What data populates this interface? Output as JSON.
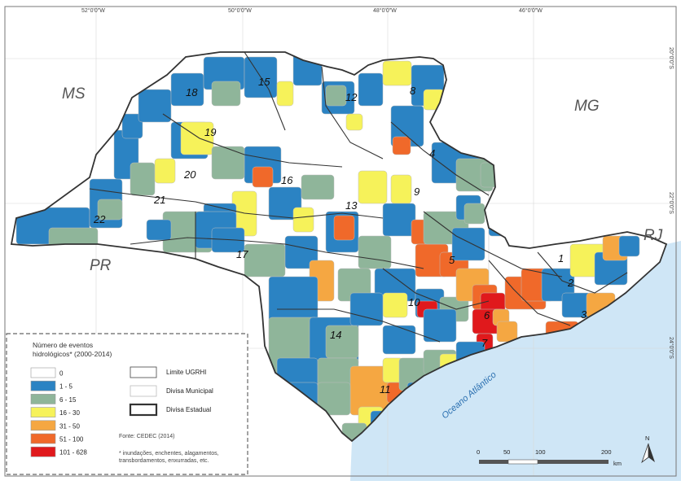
{
  "graticule": {
    "top": [
      "52°0'0\"W",
      "50°0'0\"W",
      "48°0'0\"W",
      "46°0'0\"W"
    ],
    "right": [
      "20°0'0\"S",
      "22°0'0\"S",
      "24°0'0\"S"
    ]
  },
  "states": [
    "MS",
    "MG",
    "PR",
    "RJ"
  ],
  "ugrhi_numbers": [
    "1",
    "2",
    "3",
    "4",
    "5",
    "6",
    "7",
    "8",
    "9",
    "10",
    "11",
    "12",
    "13",
    "14",
    "15",
    "16",
    "17",
    "18",
    "19",
    "20",
    "21",
    "22"
  ],
  "ocean_label": "Oceano Atlântico",
  "legend": {
    "title_line1": "Número de eventos",
    "title_line2": "hidrológicos* (2000-2014)",
    "classes": [
      {
        "label": "0",
        "color": "#ffffff"
      },
      {
        "label": "1 - 5",
        "color": "#2b83c3"
      },
      {
        "label": "6 - 15",
        "color": "#8fb59a"
      },
      {
        "label": "16 - 30",
        "color": "#f6f25a"
      },
      {
        "label": "31 - 50",
        "color": "#f5a742"
      },
      {
        "label": "51 - 100",
        "color": "#f0692a"
      },
      {
        "label": "101 - 628",
        "color": "#e0191c"
      }
    ],
    "lines": [
      {
        "label": "Limite UGRHI"
      },
      {
        "label": "Divisa Municipal"
      },
      {
        "label": "Divisa Estadual"
      }
    ],
    "source": "Fonte: CEDEC (2014)",
    "note_line1": "* inundações, enchentes, alagamentos,",
    "note_line2": "transbordamentos, enxurradas, etc."
  },
  "scale": {
    "ticks": [
      "0",
      "50",
      "100",
      "200"
    ],
    "unit": "km"
  },
  "north_label": "N",
  "colors": {
    "ocean": "#cfe6f6",
    "land_outside": "#ffffff",
    "frame": "#777777"
  }
}
